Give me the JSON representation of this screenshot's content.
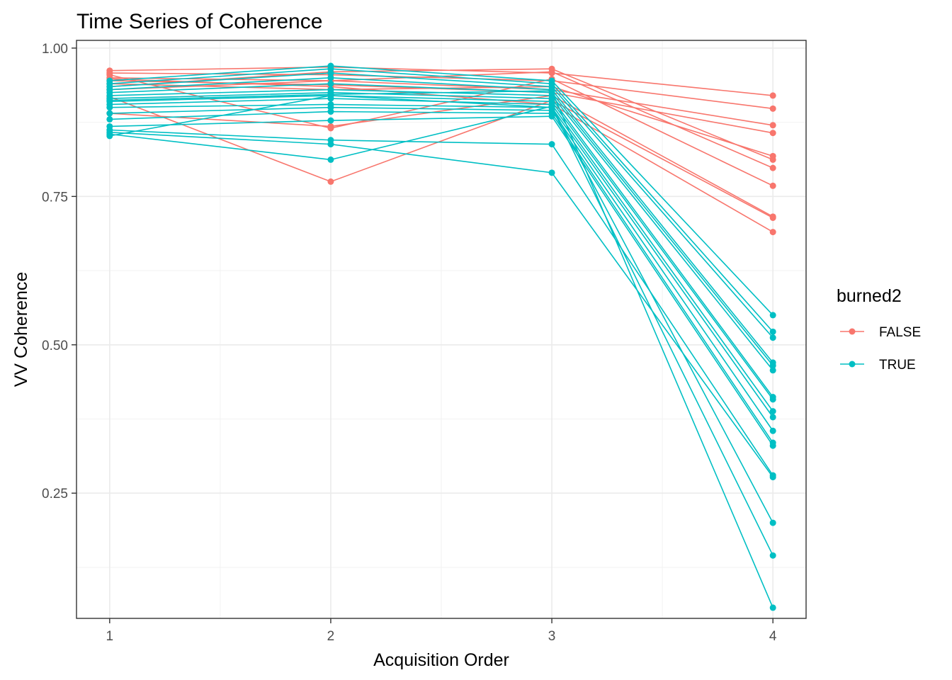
{
  "chart_data": {
    "type": "line",
    "title": "Time Series of Coherence",
    "xlabel": "Acquisition Order",
    "ylabel": "VV Coherence",
    "x": [
      1,
      2,
      3,
      4
    ],
    "xlim": [
      0.85,
      4.15
    ],
    "ylim": [
      0.039,
      1.013
    ],
    "x_ticks": [
      1,
      2,
      3,
      4
    ],
    "x_tick_labels": [
      "1",
      "2",
      "3",
      "4"
    ],
    "y_ticks": [
      0.25,
      0.5,
      0.75,
      1.0
    ],
    "y_tick_labels": [
      "0.25",
      "0.50",
      "0.75",
      "1.00"
    ],
    "grid": true,
    "legend": {
      "title": "burned2",
      "position": "right",
      "entries": [
        {
          "label": "FALSE",
          "color": "#F8766D"
        },
        {
          "label": "TRUE",
          "color": "#00BFC4"
        }
      ]
    },
    "series": [
      {
        "group": "FALSE",
        "values": [
          0.962,
          0.968,
          0.958,
          0.92
        ]
      },
      {
        "group": "FALSE",
        "values": [
          0.958,
          0.955,
          0.945,
          0.898
        ]
      },
      {
        "group": "FALSE",
        "values": [
          0.95,
          0.945,
          0.93,
          0.87
        ]
      },
      {
        "group": "FALSE",
        "values": [
          0.945,
          0.938,
          0.925,
          0.857
        ]
      },
      {
        "group": "FALSE",
        "values": [
          0.94,
          0.93,
          0.935,
          0.818
        ]
      },
      {
        "group": "FALSE",
        "values": [
          0.935,
          0.96,
          0.965,
          0.812
        ]
      },
      {
        "group": "FALSE",
        "values": [
          0.93,
          0.945,
          0.96,
          0.798
        ]
      },
      {
        "group": "FALSE",
        "values": [
          0.955,
          0.865,
          0.948,
          0.768
        ]
      },
      {
        "group": "FALSE",
        "values": [
          0.89,
          0.868,
          0.92,
          0.716
        ]
      },
      {
        "group": "FALSE",
        "values": [
          0.918,
          0.775,
          0.912,
          0.714
        ]
      },
      {
        "group": "FALSE",
        "values": [
          0.948,
          0.935,
          0.905,
          0.69
        ]
      },
      {
        "group": "TRUE",
        "values": [
          0.945,
          0.97,
          0.945,
          0.55
        ]
      },
      {
        "group": "TRUE",
        "values": [
          0.94,
          0.965,
          0.94,
          0.522
        ]
      },
      {
        "group": "TRUE",
        "values": [
          0.935,
          0.958,
          0.935,
          0.512
        ]
      },
      {
        "group": "TRUE",
        "values": [
          0.93,
          0.95,
          0.93,
          0.47
        ]
      },
      {
        "group": "TRUE",
        "values": [
          0.925,
          0.94,
          0.925,
          0.465
        ]
      },
      {
        "group": "TRUE",
        "values": [
          0.92,
          0.93,
          0.92,
          0.457
        ]
      },
      {
        "group": "TRUE",
        "values": [
          0.915,
          0.925,
          0.915,
          0.412
        ]
      },
      {
        "group": "TRUE",
        "values": [
          0.91,
          0.92,
          0.91,
          0.408
        ]
      },
      {
        "group": "TRUE",
        "values": [
          0.905,
          0.915,
          0.905,
          0.388
        ]
      },
      {
        "group": "TRUE",
        "values": [
          0.9,
          0.905,
          0.9,
          0.378
        ]
      },
      {
        "group": "TRUE",
        "values": [
          0.89,
          0.9,
          0.895,
          0.355
        ]
      },
      {
        "group": "TRUE",
        "values": [
          0.88,
          0.893,
          0.89,
          0.335
        ]
      },
      {
        "group": "TRUE",
        "values": [
          0.868,
          0.878,
          0.885,
          0.33
        ]
      },
      {
        "group": "TRUE",
        "values": [
          0.862,
          0.845,
          0.838,
          0.28
        ]
      },
      {
        "group": "TRUE",
        "values": [
          0.858,
          0.838,
          0.79,
          0.277
        ]
      },
      {
        "group": "TRUE",
        "values": [
          0.855,
          0.812,
          0.902,
          0.2
        ]
      },
      {
        "group": "TRUE",
        "values": [
          0.852,
          0.92,
          0.9,
          0.145
        ]
      },
      {
        "group": "TRUE",
        "values": [
          0.912,
          0.922,
          0.928,
          0.057
        ]
      }
    ]
  }
}
